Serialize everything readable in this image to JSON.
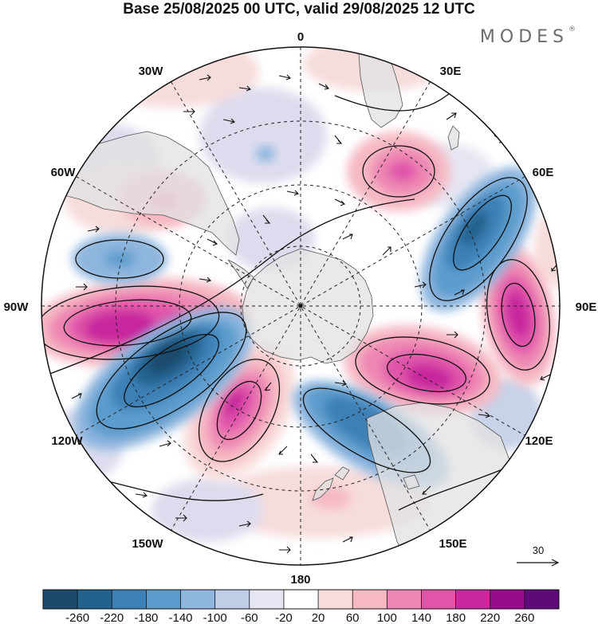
{
  "header": {
    "title": "Base 25/08/2025 00 UTC, valid 29/08/2025 12 UTC",
    "brand": "MODES",
    "brand_mark": "®"
  },
  "map": {
    "projection": "south-polar-stereographic",
    "longitude_labels": {
      "top": "0",
      "upper_left": "30W",
      "upper_right": "30E",
      "left_high": "60W",
      "right_high": "60E",
      "left": "90W",
      "right": "90E",
      "left_low": "120W",
      "right_low": "120E",
      "lower_left": "150W",
      "lower_right": "150E",
      "bottom": "180"
    },
    "vector_key": {
      "value": "30"
    }
  },
  "colorbar": {
    "colors": [
      "#1b4a6b",
      "#23628f",
      "#3c80b6",
      "#5c9ccd",
      "#8eb6de",
      "#c0cde6",
      "#e6e6f2",
      "#ffffff",
      "#f9dcdc",
      "#f6b9c4",
      "#ee86b3",
      "#e055aa",
      "#c8279d",
      "#980b8c",
      "#5e0a78"
    ],
    "tick_labels": [
      "-260",
      "-220",
      "-180",
      "-140",
      "-100",
      "-60",
      "-20",
      "20",
      "60",
      "100",
      "140",
      "180",
      "220",
      "260"
    ]
  }
}
